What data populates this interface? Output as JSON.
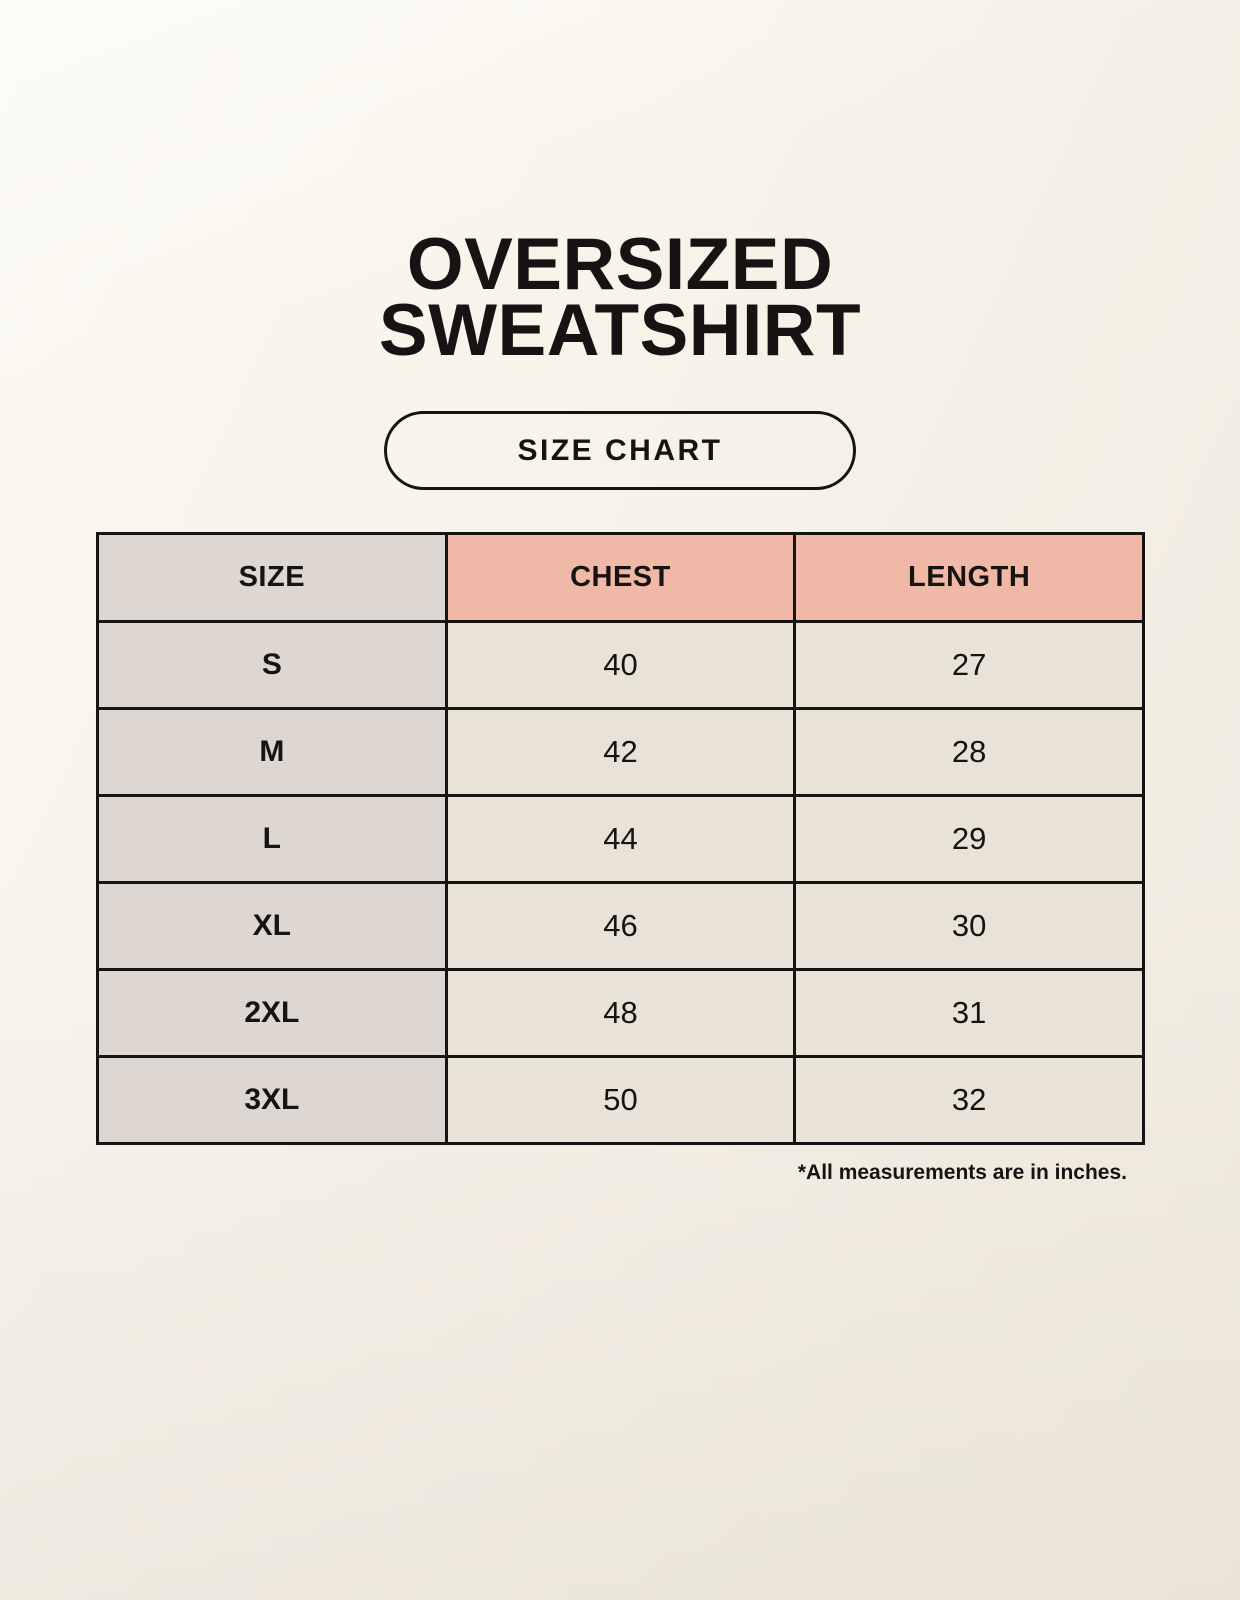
{
  "title": {
    "line1": "OVERSIZED",
    "line2": "SWEATSHIRT"
  },
  "size_chart_button": {
    "label": "SIZE CHART"
  },
  "table": {
    "headers": [
      "SIZE",
      "CHEST",
      "LENGTH"
    ],
    "rows": [
      {
        "size": "S",
        "chest": "40",
        "length": "27"
      },
      {
        "size": "M",
        "chest": "42",
        "length": "28"
      },
      {
        "size": "L",
        "chest": "44",
        "length": "29"
      },
      {
        "size": "XL",
        "chest": "46",
        "length": "30"
      },
      {
        "size": "2XL",
        "chest": "48",
        "length": "31"
      },
      {
        "size": "3XL",
        "chest": "50",
        "length": "32"
      }
    ]
  },
  "footnote": "*All measurements are in inches.",
  "colors": {
    "background": "#f8f4ea",
    "background_deep": "#efeadf",
    "header_pink": "#f0b8a6",
    "size_column": "#ddd6d1",
    "data_cell": "#e9e3d7",
    "border": "#161412",
    "text": "#161412"
  }
}
